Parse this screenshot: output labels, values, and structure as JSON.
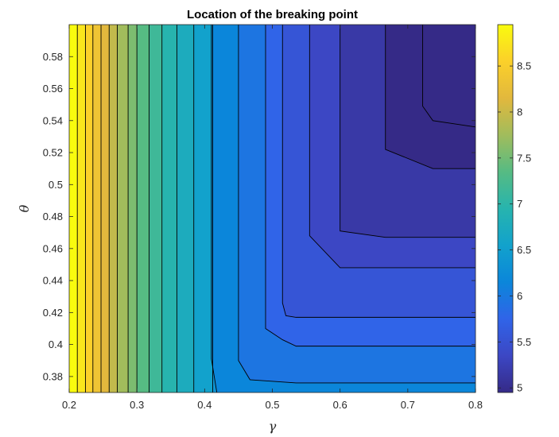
{
  "chart_data": {
    "type": "contour",
    "title": "Location of the breaking point",
    "xlabel": "γ",
    "ylabel": "θ",
    "xlim": [
      0.2,
      0.8
    ],
    "ylim": [
      0.37,
      0.6
    ],
    "xticks": [
      0.2,
      0.3,
      0.4,
      0.5,
      0.6,
      0.7,
      0.8
    ],
    "xtick_labels": [
      "0.2",
      "0.3",
      "0.4",
      "0.5",
      "0.6",
      "0.7",
      "0.8"
    ],
    "yticks": [
      0.38,
      0.4,
      0.42,
      0.44,
      0.46,
      0.48,
      0.5,
      0.52,
      0.54,
      0.56,
      0.58
    ],
    "ytick_labels": [
      "0.38",
      "0.4",
      "0.42",
      "0.44",
      "0.46",
      "0.48",
      "0.5",
      "0.52",
      "0.54",
      "0.56",
      "0.58"
    ],
    "colorbar": {
      "range": [
        4.95,
        8.95
      ],
      "ticks": [
        5,
        5.5,
        6,
        6.5,
        7,
        7.5,
        8,
        8.5
      ],
      "tick_labels": [
        "5",
        "5.5",
        "6",
        "6.5",
        "7",
        "7.5",
        "8",
        "8.5"
      ],
      "colormap": "parula",
      "stops": [
        "#352a87",
        "#3c47c4",
        "#3064e8",
        "#0b86da",
        "#12a2cc",
        "#27b4ae",
        "#56bb83",
        "#a1bc5c",
        "#e2b83d",
        "#fbd02a",
        "#f9fb0e"
      ]
    },
    "vertical_bands": [
      {
        "x": [
          0.2,
          0.212
        ],
        "value": 8.95
      },
      {
        "x": [
          0.212,
          0.224
        ],
        "value": 8.75
      },
      {
        "x": [
          0.224,
          0.235
        ],
        "value": 8.55
      },
      {
        "x": [
          0.235,
          0.247
        ],
        "value": 8.35
      },
      {
        "x": [
          0.247,
          0.259
        ],
        "value": 8.15
      },
      {
        "x": [
          0.259,
          0.271
        ],
        "value": 7.95
      },
      {
        "x": [
          0.271,
          0.287
        ],
        "value": 7.75
      },
      {
        "x": [
          0.287,
          0.3
        ],
        "value": 7.55
      },
      {
        "x": [
          0.3,
          0.318
        ],
        "value": 7.35
      },
      {
        "x": [
          0.318,
          0.337
        ],
        "value": 7.15
      },
      {
        "x": [
          0.337,
          0.359
        ],
        "value": 6.95
      },
      {
        "x": [
          0.359,
          0.384
        ],
        "value": 6.75
      },
      {
        "x": [
          0.384,
          0.412
        ],
        "value": 6.55
      }
    ],
    "region_levels": [
      6.35,
      6.15,
      5.95,
      5.75,
      5.55,
      5.35,
      5.15,
      4.95
    ],
    "contour_lines": [
      [
        [
          0.412,
          0.6
        ],
        [
          0.412,
          0.37
        ]
      ],
      [
        [
          0.41,
          0.6
        ],
        [
          0.41,
          0.391
        ],
        [
          0.418,
          0.37
        ]
      ],
      [
        [
          0.45,
          0.6
        ],
        [
          0.45,
          0.39
        ],
        [
          0.467,
          0.378
        ],
        [
          0.535,
          0.376
        ],
        [
          0.8,
          0.376
        ]
      ],
      [
        [
          0.49,
          0.6
        ],
        [
          0.49,
          0.41
        ],
        [
          0.515,
          0.403
        ],
        [
          0.535,
          0.399
        ],
        [
          0.8,
          0.399
        ]
      ],
      [
        [
          0.515,
          0.6
        ],
        [
          0.515,
          0.426
        ],
        [
          0.52,
          0.418
        ],
        [
          0.535,
          0.417
        ],
        [
          0.8,
          0.417
        ]
      ],
      [
        [
          0.555,
          0.6
        ],
        [
          0.555,
          0.468
        ],
        [
          0.6,
          0.448
        ],
        [
          0.8,
          0.448
        ]
      ],
      [
        [
          0.6,
          0.6
        ],
        [
          0.6,
          0.471
        ],
        [
          0.667,
          0.467
        ],
        [
          0.8,
          0.467
        ]
      ],
      [
        [
          0.667,
          0.6
        ],
        [
          0.667,
          0.522
        ],
        [
          0.737,
          0.51
        ],
        [
          0.8,
          0.51
        ]
      ],
      [
        [
          0.722,
          0.6
        ],
        [
          0.722,
          0.549
        ],
        [
          0.737,
          0.54
        ],
        [
          0.8,
          0.536
        ]
      ]
    ]
  }
}
